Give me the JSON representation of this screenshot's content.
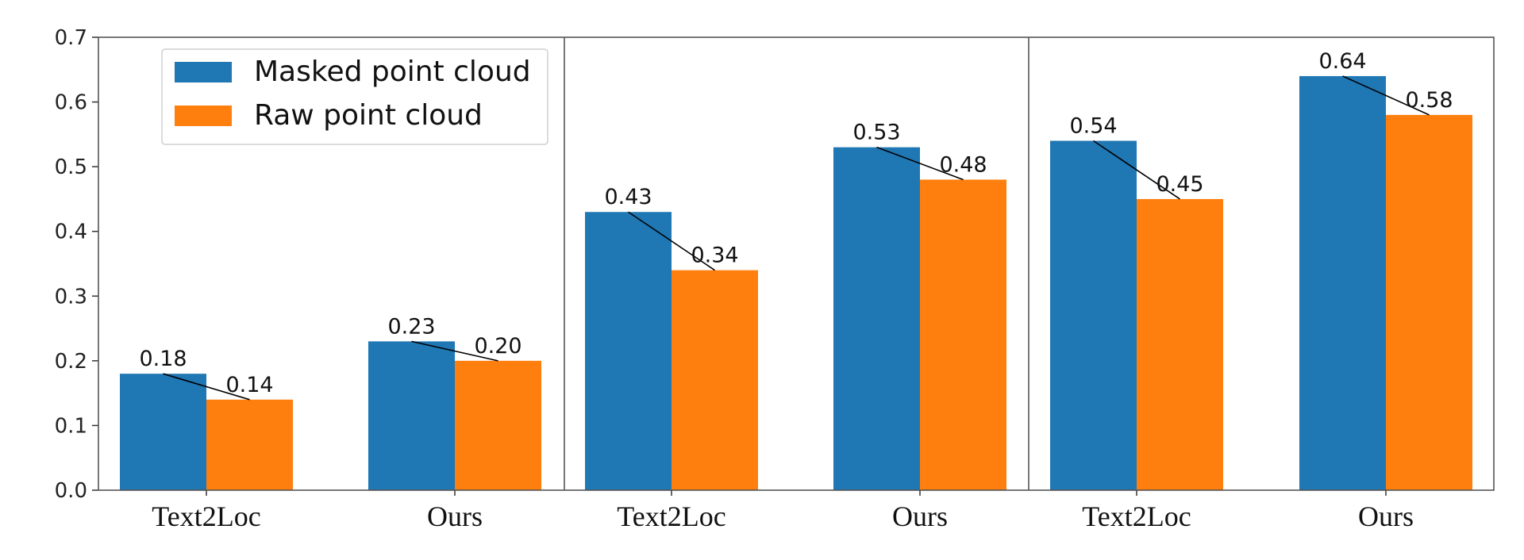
{
  "chart_data": {
    "type": "bar",
    "categories": [
      "Text2Loc",
      "Ours",
      "Text2Loc",
      "Ours",
      "Text2Loc",
      "Ours"
    ],
    "series": [
      {
        "name": "Masked point cloud",
        "values": [
          0.18,
          0.23,
          0.43,
          0.53,
          0.54,
          0.64
        ],
        "color": "#1f77b4"
      },
      {
        "name": "Raw point cloud",
        "values": [
          0.14,
          0.2,
          0.34,
          0.48,
          0.45,
          0.58
        ],
        "color": "#ff7f0e"
      }
    ],
    "value_labels": {
      "Masked point cloud": [
        "0.18",
        "0.23",
        "0.43",
        "0.53",
        "0.54",
        "0.64"
      ],
      "Raw point cloud": [
        "0.14",
        "0.20",
        "0.34",
        "0.48",
        "0.45",
        "0.58"
      ]
    },
    "yticks": [
      "0.0",
      "0.1",
      "0.2",
      "0.3",
      "0.4",
      "0.5",
      "0.6",
      "0.7"
    ],
    "ylim": [
      0,
      0.7
    ],
    "grid": false,
    "legend_position": "top-left",
    "group_separators": true,
    "title": "",
    "xlabel": "",
    "ylabel": ""
  }
}
